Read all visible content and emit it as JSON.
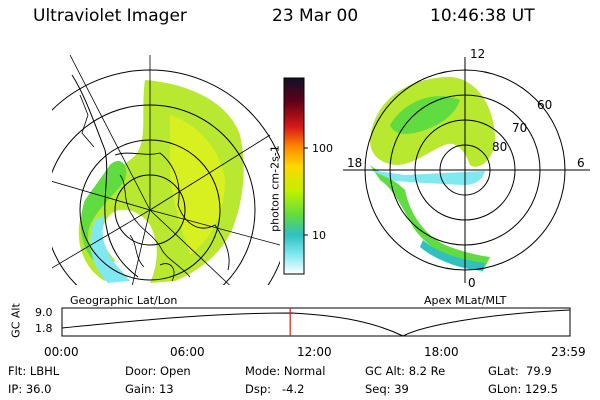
{
  "header": {
    "instrument": "Ultraviolet Imager",
    "date": "23 Mar 00",
    "time": "10:46:38 UT"
  },
  "colorbar": {
    "unit": "photon cm-2s-1",
    "ticks": [
      "100",
      "10"
    ],
    "scale": "log",
    "colors": [
      "#101028",
      "#c00000",
      "#e83030",
      "#ff9000",
      "#ffd800",
      "#c0f000",
      "#60dc40",
      "#30c0c0",
      "#80e8f0",
      "#ffffff"
    ]
  },
  "panels": {
    "left_label": "Geographic Lat/Lon",
    "right_label": "Apex MLat/MLT",
    "right_labels": [
      "12",
      "60",
      "70",
      "80",
      "18",
      "6",
      "0"
    ]
  },
  "timeline": {
    "ylabel": "GC Alt",
    "yticks": [
      "9.0",
      "1.8"
    ],
    "xticks": [
      "00:00",
      "06:00",
      "12:00",
      "18:00",
      "23:59"
    ],
    "marker_hour": 10.78,
    "line_color": "#d02020"
  },
  "info": {
    "flt": "Flt: LBHL",
    "ip": "IP: 36.0",
    "door": "Door: Open",
    "gain": "Gain: 13",
    "mode": "Mode: Normal",
    "dsp": "Dsp:   -4.2",
    "gcalt": "GC Alt: 8.2 Re",
    "seq": "Seq: 39",
    "glat": "GLat:  79.9",
    "glon": "GLon: 129.5"
  }
}
